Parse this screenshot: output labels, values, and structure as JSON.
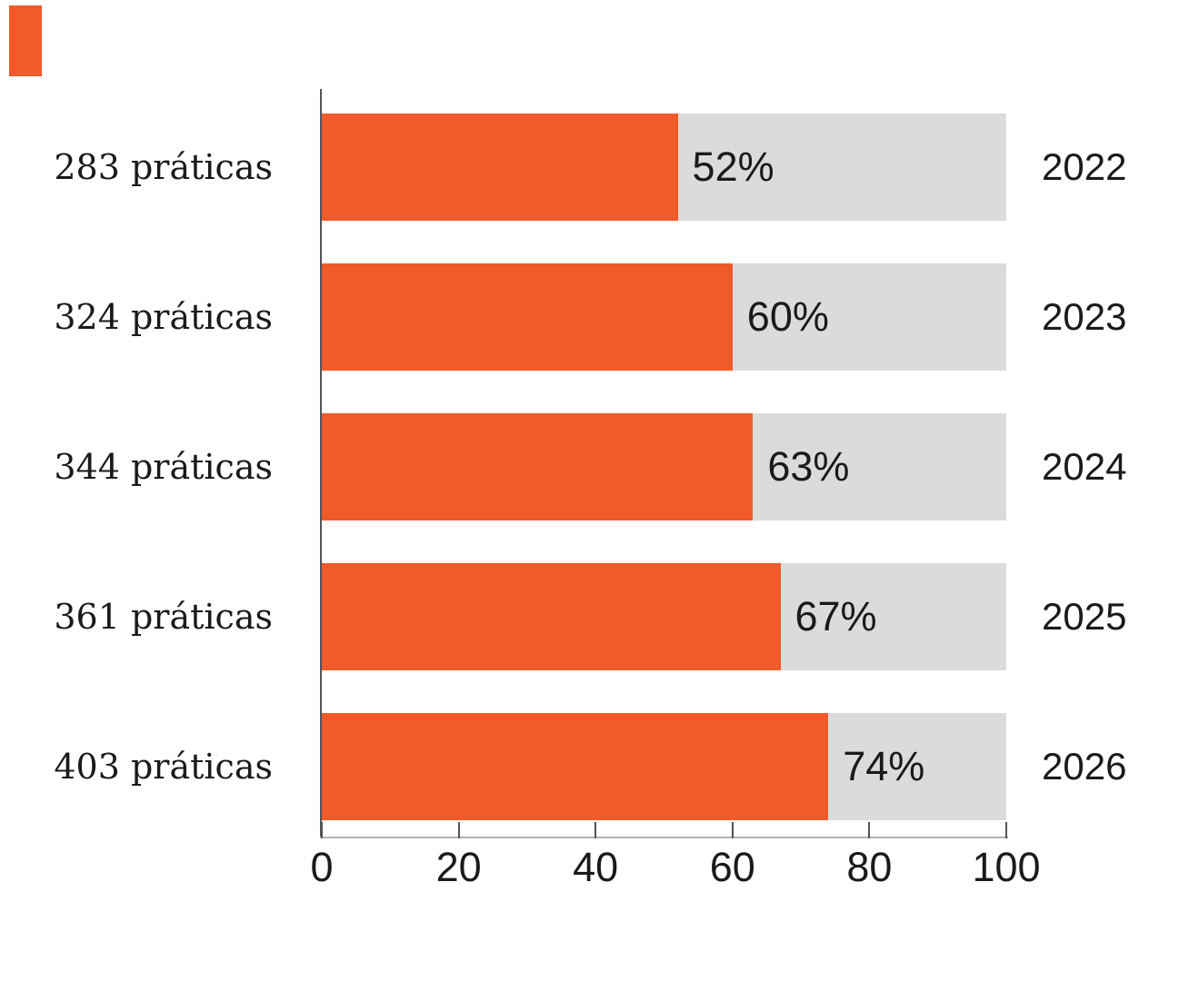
{
  "brand": {
    "mark": "orange-square",
    "accent_color": "#F15A29"
  },
  "chart_data": {
    "type": "bar",
    "orientation": "horizontal",
    "title": "",
    "xlabel": "",
    "ylabel": "",
    "xlim": [
      0,
      100
    ],
    "x_ticks": [
      "0",
      "20",
      "40",
      "60",
      "80",
      "100"
    ],
    "grid": false,
    "legend": "none",
    "categories": [
      "2022",
      "2023",
      "2024",
      "2025",
      "2026"
    ],
    "values": [
      52,
      60,
      63,
      67,
      74
    ],
    "rows": [
      {
        "left_label": "283 práticas",
        "value": 52,
        "pct_label": "52%",
        "year": "2022"
      },
      {
        "left_label": "324 práticas",
        "value": 60,
        "pct_label": "60%",
        "year": "2023"
      },
      {
        "left_label": "344 práticas",
        "value": 63,
        "pct_label": "63%",
        "year": "2024"
      },
      {
        "left_label": "361 práticas",
        "value": 67,
        "pct_label": "67%",
        "year": "2025"
      },
      {
        "left_label": "403 práticas",
        "value": 74,
        "pct_label": "74%",
        "year": "2026"
      }
    ],
    "colors": {
      "bar": "#F15A29",
      "track": "#DBDBDB",
      "axis": "#50555a",
      "baseline": "#b3b3b3",
      "text": "#1a1a1a",
      "bg": "#ffffff"
    }
  }
}
